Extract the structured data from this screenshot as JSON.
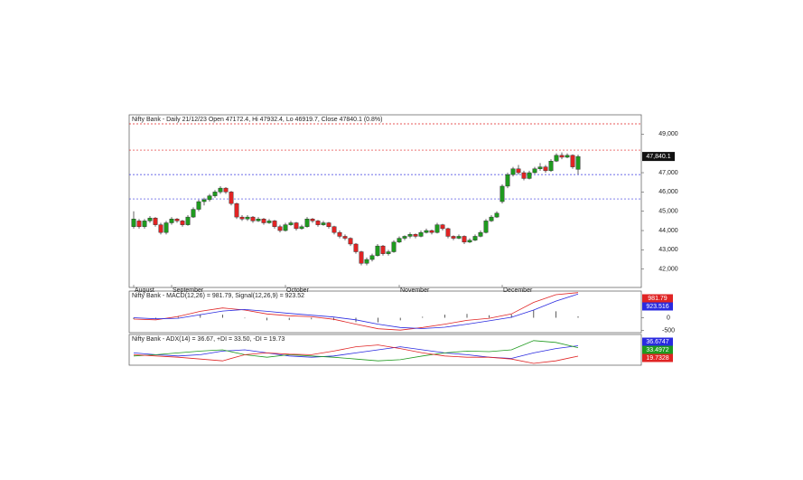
{
  "chart_data": [
    {
      "type": "candlestick",
      "title": "Nifty Bank - Daily 21/12/23 Open 47172.4, Hi 47932.4, Lo 46919.7, Close 47840.1 (0.8%)",
      "categories": [
        "August",
        null,
        null,
        null,
        null,
        null,
        null,
        "September",
        null,
        null,
        null,
        null,
        null,
        null,
        null,
        null,
        null,
        null,
        null,
        null,
        null,
        null,
        null,
        null,
        null,
        null,
        null,
        null,
        "October",
        null,
        null,
        null,
        null,
        null,
        null,
        null,
        null,
        null,
        null,
        null,
        null,
        null,
        null,
        null,
        null,
        null,
        null,
        null,
        null,
        "November",
        null,
        null,
        null,
        null,
        null,
        null,
        null,
        null,
        null,
        null,
        null,
        null,
        null,
        null,
        null,
        null,
        null,
        null,
        "December",
        null,
        null,
        null,
        null,
        null,
        null,
        null,
        null,
        null,
        null,
        null,
        null,
        null,
        null
      ],
      "candles": [
        [
          44200,
          45000,
          44100,
          44600
        ],
        [
          44500,
          44600,
          44100,
          44200
        ],
        [
          44200,
          44600,
          44100,
          44500
        ],
        [
          44500,
          44750,
          44400,
          44650
        ],
        [
          44650,
          44700,
          44200,
          44300
        ],
        [
          44300,
          44400,
          43800,
          43900
        ],
        [
          43900,
          44500,
          43800,
          44400
        ],
        [
          44400,
          44700,
          44300,
          44600
        ],
        [
          44600,
          44650,
          44400,
          44500
        ],
        [
          44500,
          44550,
          44200,
          44300
        ],
        [
          44300,
          44800,
          44250,
          44700
        ],
        [
          44700,
          45200,
          44650,
          45100
        ],
        [
          45100,
          45600,
          45000,
          45500
        ],
        [
          45500,
          45700,
          45300,
          45600
        ],
        [
          45600,
          45900,
          45500,
          45800
        ],
        [
          45800,
          46100,
          45700,
          46000
        ],
        [
          46000,
          46300,
          45900,
          46200
        ],
        [
          46200,
          46250,
          45900,
          46000
        ],
        [
          46000,
          46050,
          45300,
          45400
        ],
        [
          45400,
          45450,
          44600,
          44700
        ],
        [
          44700,
          44800,
          44500,
          44600
        ],
        [
          44600,
          44800,
          44500,
          44700
        ],
        [
          44700,
          44750,
          44400,
          44500
        ],
        [
          44500,
          44700,
          44450,
          44600
        ],
        [
          44600,
          44650,
          44300,
          44400
        ],
        [
          44400,
          44600,
          44350,
          44500
        ],
        [
          44500,
          44550,
          44100,
          44200
        ],
        [
          44200,
          44300,
          43900,
          44000
        ],
        [
          44000,
          44400,
          43950,
          44300
        ],
        [
          44300,
          44500,
          44250,
          44400
        ],
        [
          44400,
          44450,
          44000,
          44100
        ],
        [
          44100,
          44300,
          44050,
          44200
        ],
        [
          44200,
          44700,
          44150,
          44600
        ],
        [
          44600,
          44650,
          44400,
          44500
        ],
        [
          44500,
          44550,
          44200,
          44300
        ],
        [
          44300,
          44500,
          44250,
          44400
        ],
        [
          44400,
          44450,
          44100,
          44200
        ],
        [
          44200,
          44250,
          43800,
          43900
        ],
        [
          43900,
          44000,
          43600,
          43700
        ],
        [
          43700,
          43800,
          43500,
          43600
        ],
        [
          43600,
          43650,
          43200,
          43300
        ],
        [
          43300,
          43350,
          42800,
          42900
        ],
        [
          42900,
          42950,
          42200,
          42300
        ],
        [
          42300,
          42600,
          42200,
          42500
        ],
        [
          42500,
          42800,
          42400,
          42700
        ],
        [
          42700,
          43300,
          42650,
          43200
        ],
        [
          43200,
          43250,
          42700,
          42800
        ],
        [
          42800,
          43000,
          42700,
          42900
        ],
        [
          42900,
          43500,
          42850,
          43400
        ],
        [
          43400,
          43700,
          43350,
          43600
        ],
        [
          43600,
          43750,
          43500,
          43700
        ],
        [
          43700,
          43900,
          43600,
          43800
        ],
        [
          43800,
          43850,
          43600,
          43700
        ],
        [
          43700,
          44000,
          43650,
          43900
        ],
        [
          43900,
          44100,
          43850,
          44000
        ],
        [
          44000,
          44050,
          43800,
          43900
        ],
        [
          43900,
          44400,
          43850,
          44300
        ],
        [
          44300,
          44350,
          44000,
          44100
        ],
        [
          44100,
          44150,
          43600,
          43700
        ],
        [
          43700,
          43750,
          43500,
          43600
        ],
        [
          43600,
          43800,
          43550,
          43700
        ],
        [
          43700,
          43750,
          43300,
          43400
        ],
        [
          43400,
          43600,
          43350,
          43500
        ],
        [
          43500,
          43800,
          43450,
          43700
        ],
        [
          43700,
          44000,
          43650,
          43900
        ],
        [
          43900,
          44600,
          43850,
          44500
        ],
        [
          44500,
          44800,
          44450,
          44700
        ],
        [
          44700,
          45000,
          44650,
          44900
        ],
        [
          45500,
          46400,
          45400,
          46300
        ],
        [
          46300,
          47000,
          46200,
          46900
        ],
        [
          46900,
          47300,
          46800,
          47200
        ],
        [
          47200,
          47400,
          46900,
          47000
        ],
        [
          47000,
          47100,
          46600,
          46700
        ],
        [
          46700,
          47100,
          46650,
          47000
        ],
        [
          47000,
          47300,
          46950,
          47200
        ],
        [
          47200,
          47500,
          47100,
          47300
        ],
        [
          47300,
          47400,
          47000,
          47100
        ],
        [
          47100,
          47700,
          47050,
          47600
        ],
        [
          47600,
          48000,
          47550,
          47900
        ],
        [
          47900,
          48050,
          47700,
          47800
        ],
        [
          47800,
          48000,
          47750,
          47900
        ],
        [
          47900,
          47950,
          47200,
          47300
        ],
        [
          47172.4,
          47932.4,
          46919.7,
          47840.1
        ]
      ],
      "up_color": "#1f9a1f",
      "down_color": "#e02424",
      "levels": [
        {
          "value": 49530,
          "color": "#e02424"
        },
        {
          "value": 48170,
          "color": "#e02424"
        },
        {
          "value": 46900,
          "color": "#3a3ae0"
        },
        {
          "value": 45640,
          "color": "#3a3ae0"
        }
      ],
      "last_price_label": "47,840.1",
      "ylim": [
        41050,
        50000
      ],
      "yticks": [
        {
          "value": 42000,
          "label": "42,000"
        },
        {
          "value": 43000,
          "label": "43,000"
        },
        {
          "value": 44000,
          "label": "44,000"
        },
        {
          "value": 45000,
          "label": "45,000"
        },
        {
          "value": 46000,
          "label": "46,000"
        },
        {
          "value": 47000,
          "label": "47,000"
        },
        {
          "value": 49000,
          "label": "49,000"
        }
      ]
    },
    {
      "type": "line",
      "title": "Nifty Bank - MACD(12,26) = 981.79, Signal(12,26,9) = 923.52",
      "series": [
        {
          "name": "MACD",
          "color": "#e02424",
          "values": [
            -50,
            -80,
            50,
            250,
            380,
            300,
            150,
            80,
            40,
            -60,
            -250,
            -430,
            -480,
            -380,
            -250,
            -100,
            -20,
            150,
            600,
            900,
            981.79
          ]
        },
        {
          "name": "Signal",
          "color": "#2a2ae0",
          "values": [
            0,
            -40,
            -20,
            120,
            260,
            320,
            250,
            170,
            100,
            30,
            -80,
            -250,
            -380,
            -420,
            -370,
            -250,
            -120,
            20,
            300,
            650,
            923.516
          ]
        }
      ],
      "histogram": [
        -50,
        -40,
        70,
        130,
        120,
        -20,
        -100,
        -90,
        -60,
        -90,
        -170,
        -180,
        -100,
        40,
        120,
        150,
        100,
        130,
        300,
        250,
        58
      ],
      "ylim": [
        -580,
        1040
      ],
      "yticks": [
        0,
        -500
      ]
    },
    {
      "type": "line",
      "title": "Nifty Bank - ADX(14) = 36.67, +DI = 33.50, -DI = 19.73",
      "series": [
        {
          "name": "ADX",
          "color": "#2a2ae0",
          "values": [
            25,
            22,
            20,
            22,
            28,
            30,
            25,
            20,
            18,
            20,
            25,
            30,
            35,
            30,
            25,
            22,
            18,
            16,
            25,
            32,
            36.6747
          ]
        },
        {
          "name": "+DI",
          "color": "#1f9a1f",
          "values": [
            20,
            22,
            25,
            28,
            30,
            22,
            18,
            22,
            20,
            18,
            15,
            12,
            14,
            20,
            25,
            28,
            27,
            30,
            45,
            42,
            33.4972
          ]
        },
        {
          "name": "-DI",
          "color": "#e02424",
          "values": [
            22,
            20,
            18,
            15,
            12,
            22,
            25,
            23,
            22,
            28,
            35,
            38,
            32,
            25,
            20,
            18,
            18,
            15,
            8,
            12,
            19.7328
          ]
        }
      ],
      "ylim": [
        5,
        55
      ]
    }
  ]
}
